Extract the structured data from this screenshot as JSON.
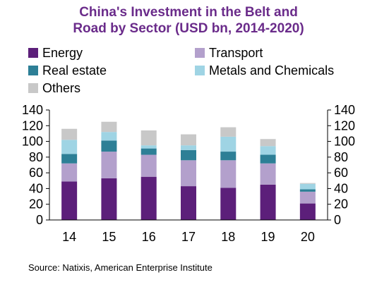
{
  "title_line1": "China's Investment in the Belt and",
  "title_line2": "Road by Sector (USD bn, 2014-2020)",
  "source": "Source: Natixis, American Enterprise Institute",
  "chart_data": {
    "type": "bar",
    "stacked": true,
    "title": "China's Investment in the Belt and Road by Sector (USD bn, 2014-2020)",
    "categories": [
      "14",
      "15",
      "16",
      "17",
      "18",
      "19",
      "20"
    ],
    "ylim": [
      0,
      140
    ],
    "yticks": [
      0,
      20,
      40,
      60,
      80,
      100,
      120,
      140
    ],
    "legend_position": "top",
    "series": [
      {
        "name": "Energy",
        "color": "#5c1f7a",
        "values": [
          49,
          53,
          55,
          43,
          41,
          45,
          21
        ]
      },
      {
        "name": "Transport",
        "color": "#b3a0cc",
        "values": [
          23,
          34,
          28,
          33,
          35,
          27,
          15
        ]
      },
      {
        "name": "Real estate",
        "color": "#2d7f96",
        "values": [
          12,
          14,
          8,
          13,
          11,
          11,
          3
        ]
      },
      {
        "name": "Metals and Chemicals",
        "color": "#9fd4e4",
        "values": [
          18,
          11,
          4,
          6,
          19,
          11,
          7
        ]
      },
      {
        "name": "Others",
        "color": "#c8c8c8",
        "values": [
          14,
          13,
          19,
          14,
          12,
          9,
          1
        ]
      }
    ]
  }
}
